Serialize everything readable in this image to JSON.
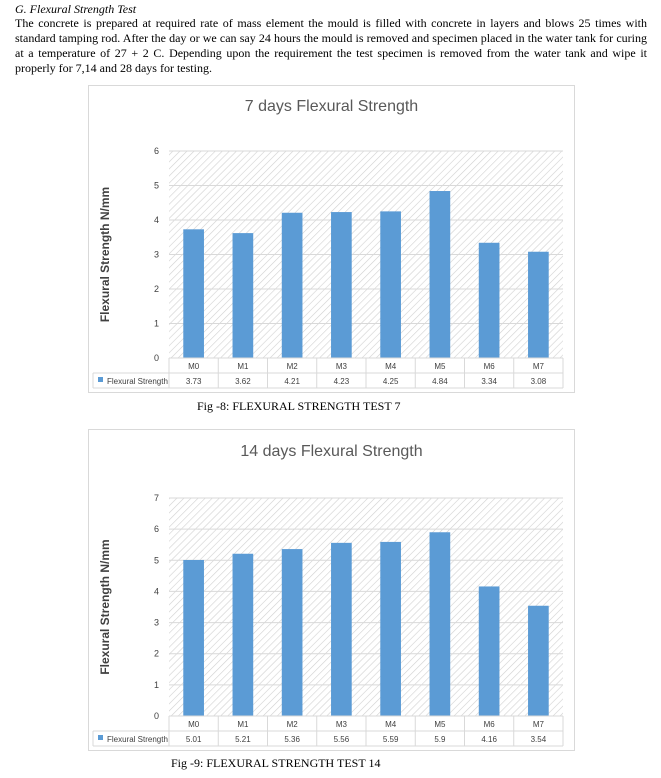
{
  "section": {
    "heading": "G.   Flexural Strength Test",
    "paragraph": "The concrete is prepared at required rate of mass element the mould is filled with concrete in layers and blows 25 times with standard tamping rod. After the day or we can say 24 hours the mould is removed and specimen placed in the water tank for curing at a temperature of 27 + 2 C. Depending upon the requirement the test specimen is removed from the water tank and wipe it properly for 7,14 and 28 days for testing."
  },
  "captions": {
    "fig8": "Fig -8:   FLEXURAL STRENGTH TEST 7",
    "fig9": "Fig -9:   FLEXURAL STRENGTH TEST 14"
  },
  "colors": {
    "bar": "#5b9bd5",
    "grid": "#d9d9d9",
    "title": "#595959"
  },
  "chart_data": [
    {
      "type": "bar",
      "title": "7 days Flexural Strength",
      "ylabel": "Flexural  Strength N/mm",
      "xlabel": "",
      "categories": [
        "M0",
        "M1",
        "M2",
        "M3",
        "M4",
        "M5",
        "M6",
        "M7"
      ],
      "series": [
        {
          "name": "Flexural Strength",
          "values": [
            3.73,
            3.62,
            4.21,
            4.23,
            4.25,
            4.84,
            3.34,
            3.08
          ]
        }
      ],
      "ylim": [
        0,
        6
      ],
      "yticks": [
        0,
        1,
        2,
        3,
        4,
        5,
        6
      ],
      "data_table": true,
      "grid": true
    },
    {
      "type": "bar",
      "title": "14 days Flexural Strength",
      "ylabel": "Flexural  Strength N/mm",
      "xlabel": "",
      "categories": [
        "M0",
        "M1",
        "M2",
        "M3",
        "M4",
        "M5",
        "M6",
        "M7"
      ],
      "series": [
        {
          "name": "Flexural Strength",
          "values": [
            5.01,
            5.21,
            5.36,
            5.56,
            5.59,
            5.9,
            4.16,
            3.54
          ]
        }
      ],
      "ylim": [
        0,
        7
      ],
      "yticks": [
        0,
        1,
        2,
        3,
        4,
        5,
        6,
        7
      ],
      "data_table": true,
      "grid": true
    }
  ]
}
